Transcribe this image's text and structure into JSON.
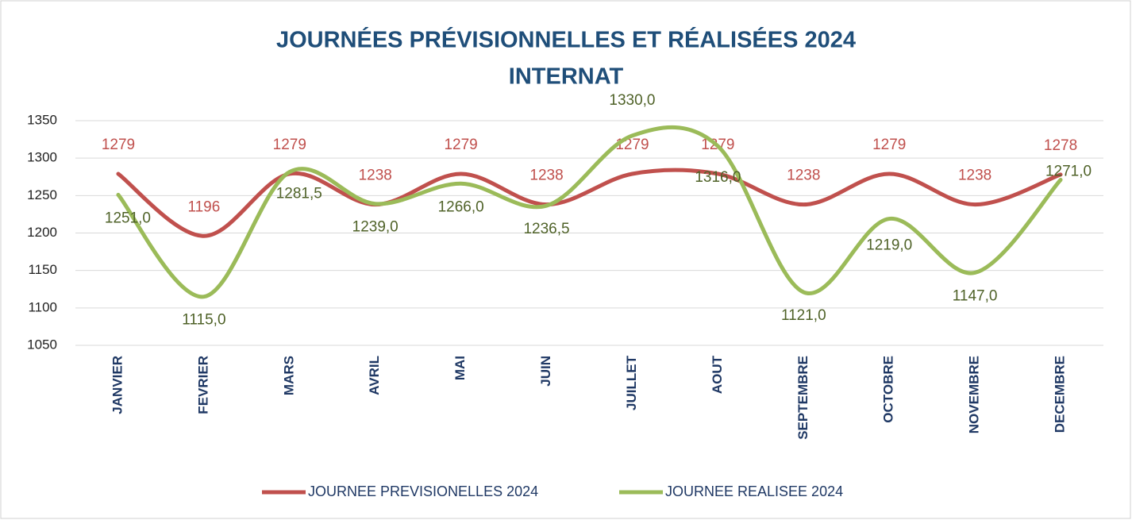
{
  "chart_data": {
    "type": "line",
    "title": "JOURNÉES PRÉVISIONNELLES ET RÉALISÉES 2024",
    "subtitle": "INTERNAT",
    "categories": [
      "JANVIER",
      "FEVRIER",
      "MARS",
      "AVRIL",
      "MAI",
      "JUIN",
      "JUILLET",
      "AOUT",
      "SEPTEMBRE",
      "OCTOBRE",
      "NOVEMBRE",
      "DECEMBRE"
    ],
    "series": [
      {
        "name": "JOURNEE PREVISIONELLES 2024",
        "color": "#c0504d",
        "values": [
          1279,
          1196,
          1279,
          1238,
          1279,
          1238,
          1279,
          1279,
          1238,
          1279,
          1238,
          1278
        ]
      },
      {
        "name": "JOURNEE REALISEE 2024",
        "color": "#9bbb59",
        "values": [
          1251,
          1115,
          1281.5,
          1239,
          1266,
          1236.5,
          1330,
          1316,
          1121,
          1219,
          1147,
          1271
        ],
        "value_labels": [
          "1251,0",
          "1115,0",
          "1281,5",
          "1239,0",
          "1266,0",
          "1236,5",
          "1330,0",
          "1316,0",
          "1121,0",
          "1219,0",
          "1147,0",
          "1271,0"
        ]
      }
    ],
    "ylim": [
      1050,
      1350
    ],
    "yticks": [
      1050,
      1100,
      1150,
      1200,
      1250,
      1300,
      1350
    ],
    "grid": true,
    "legend": "bottom",
    "smooth": true
  }
}
